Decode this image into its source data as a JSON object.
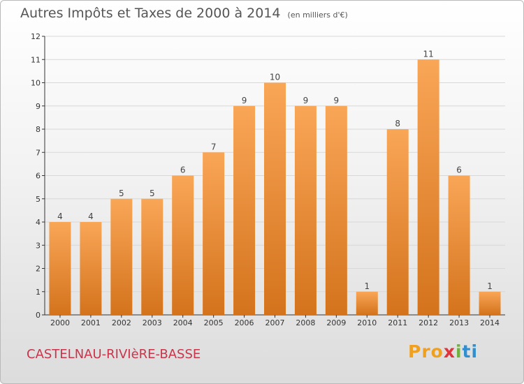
{
  "header": {
    "title": "Autres Impôts et Taxes de 2000 à 2014",
    "subtitle": "(en milliers d'€)"
  },
  "footer": {
    "commune": "CASTELNAU-RIVIèRE-BASSE",
    "logo": {
      "p": "Pro",
      "x": "x",
      "i": "i",
      "ti": "ti"
    }
  },
  "colors": {
    "bar_light": "#f9a657",
    "bar_dark": "#d4731c",
    "grid": "#d8d8d8",
    "axis": "#333333",
    "title": "#555555",
    "commune": "#c8344a"
  },
  "chart_data": {
    "type": "bar",
    "title": "Autres Impôts et Taxes de 2000 à 2014",
    "categories": [
      "2000",
      "2001",
      "2002",
      "2003",
      "2004",
      "2005",
      "2006",
      "2007",
      "2008",
      "2009",
      "2010",
      "2011",
      "2012",
      "2013",
      "2014"
    ],
    "values": [
      4,
      4,
      5,
      5,
      6,
      7,
      9,
      10,
      9,
      9,
      1,
      8,
      11,
      6,
      1
    ],
    "yticks": [
      0,
      1,
      2,
      3,
      4,
      5,
      6,
      7,
      8,
      9,
      10,
      11,
      12
    ],
    "ylim": [
      0,
      12
    ],
    "grid": true,
    "legend": "none"
  }
}
